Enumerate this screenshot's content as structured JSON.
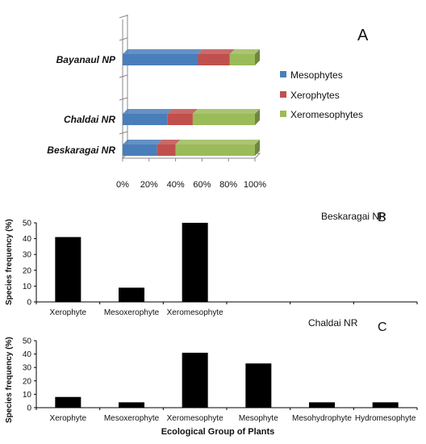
{
  "colors": {
    "mesophytes": "#4a7ebb",
    "xerophytes": "#c0504d",
    "xeromesophytes": "#9bbb59",
    "bar": "#000000",
    "axis": "#888888"
  },
  "chart_data": [
    {
      "type": "bar",
      "orientation": "horizontal",
      "stacked": true,
      "panel_label": "A",
      "categories": [
        "Bayanaul NP",
        "Chaldai NR",
        "Beskaragai NR"
      ],
      "series": [
        {
          "name": "Mesophytes",
          "values": [
            57,
            34,
            26
          ]
        },
        {
          "name": "Xerophytes",
          "values": [
            24,
            19,
            14
          ]
        },
        {
          "name": "Xeromesophytes",
          "values": [
            19,
            47,
            60
          ]
        }
      ],
      "x_ticks": [
        "0%",
        "20%",
        "40%",
        "60%",
        "80%",
        "100%"
      ],
      "xlim": [
        0,
        100
      ],
      "legend_position": "right"
    },
    {
      "type": "bar",
      "panel_label": "B",
      "site": "Beskaragai NR",
      "categories": [
        "Xerophyte",
        "Mesoxerophyte",
        "Xeromesophyte",
        "",
        "",
        ""
      ],
      "values": [
        41,
        9,
        50,
        0,
        0,
        0
      ],
      "ylabel": "Species frequency (%)",
      "y_ticks": [
        "0",
        "10",
        "20",
        "30",
        "40",
        "50"
      ],
      "ylim": [
        0,
        50
      ]
    },
    {
      "type": "bar",
      "panel_label": "C",
      "site": "Chaldai NR",
      "categories": [
        "Xerophyte",
        "Mesoxerophyte",
        "Xeromesophyte",
        "Mesophyte",
        "Mesohydrophyte",
        "Hydromesophyte"
      ],
      "values": [
        8,
        4,
        41,
        33,
        4,
        4
      ],
      "ylabel": "Species frequency (%)",
      "xlabel": "Ecological Group of Plants",
      "y_ticks": [
        "0",
        "10",
        "20",
        "30",
        "40",
        "50"
      ],
      "ylim": [
        0,
        50
      ]
    }
  ]
}
